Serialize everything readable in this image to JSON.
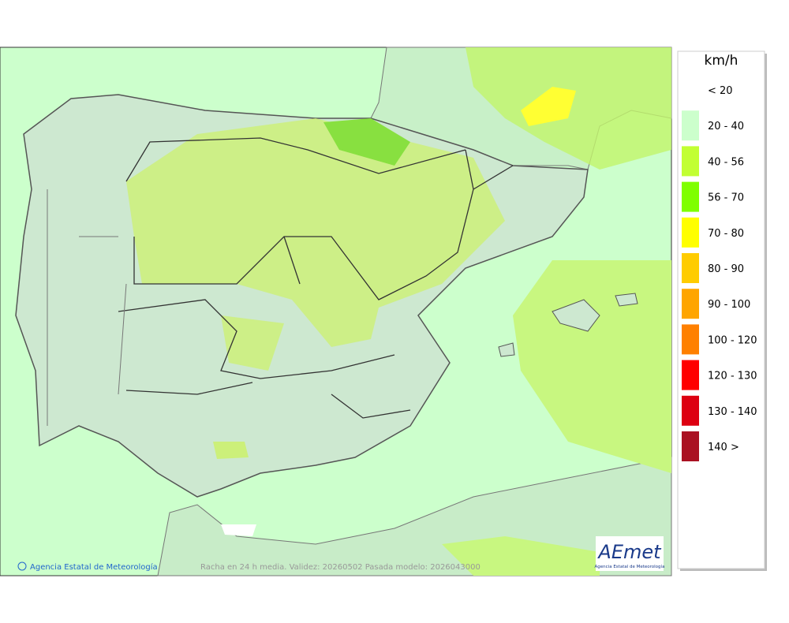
{
  "legend": {
    "unit": "km/h",
    "items": [
      {
        "label": "< 20"
      },
      {
        "label": "20 - 40",
        "color": "#ccffcc"
      },
      {
        "label": "40 - 56",
        "color": "#c2ff33"
      },
      {
        "label": "56 - 70",
        "color": "#7fff00"
      },
      {
        "label": "70 - 80",
        "color": "#ffff00"
      },
      {
        "label": "80 - 90",
        "color": "#ffcc00"
      },
      {
        "label": "90 - 100",
        "color": "#ffa500"
      },
      {
        "label": "100 - 120",
        "color": "#ff8000"
      },
      {
        "label": "120 - 130",
        "color": "#ff0000"
      },
      {
        "label": "130 - 140",
        "color": "#dd0011"
      },
      {
        "label": "140 >",
        "color": "#aa1122"
      }
    ]
  },
  "footer": {
    "credit": "Agencia Estatal de Meteorología",
    "caption": "Racha en 24 h media. Validez: 20260502 Pasada modelo: 2026043000"
  },
  "logo": {
    "name": "AEmet",
    "subtitle": "Agencia Estatal de Meteorología"
  }
}
